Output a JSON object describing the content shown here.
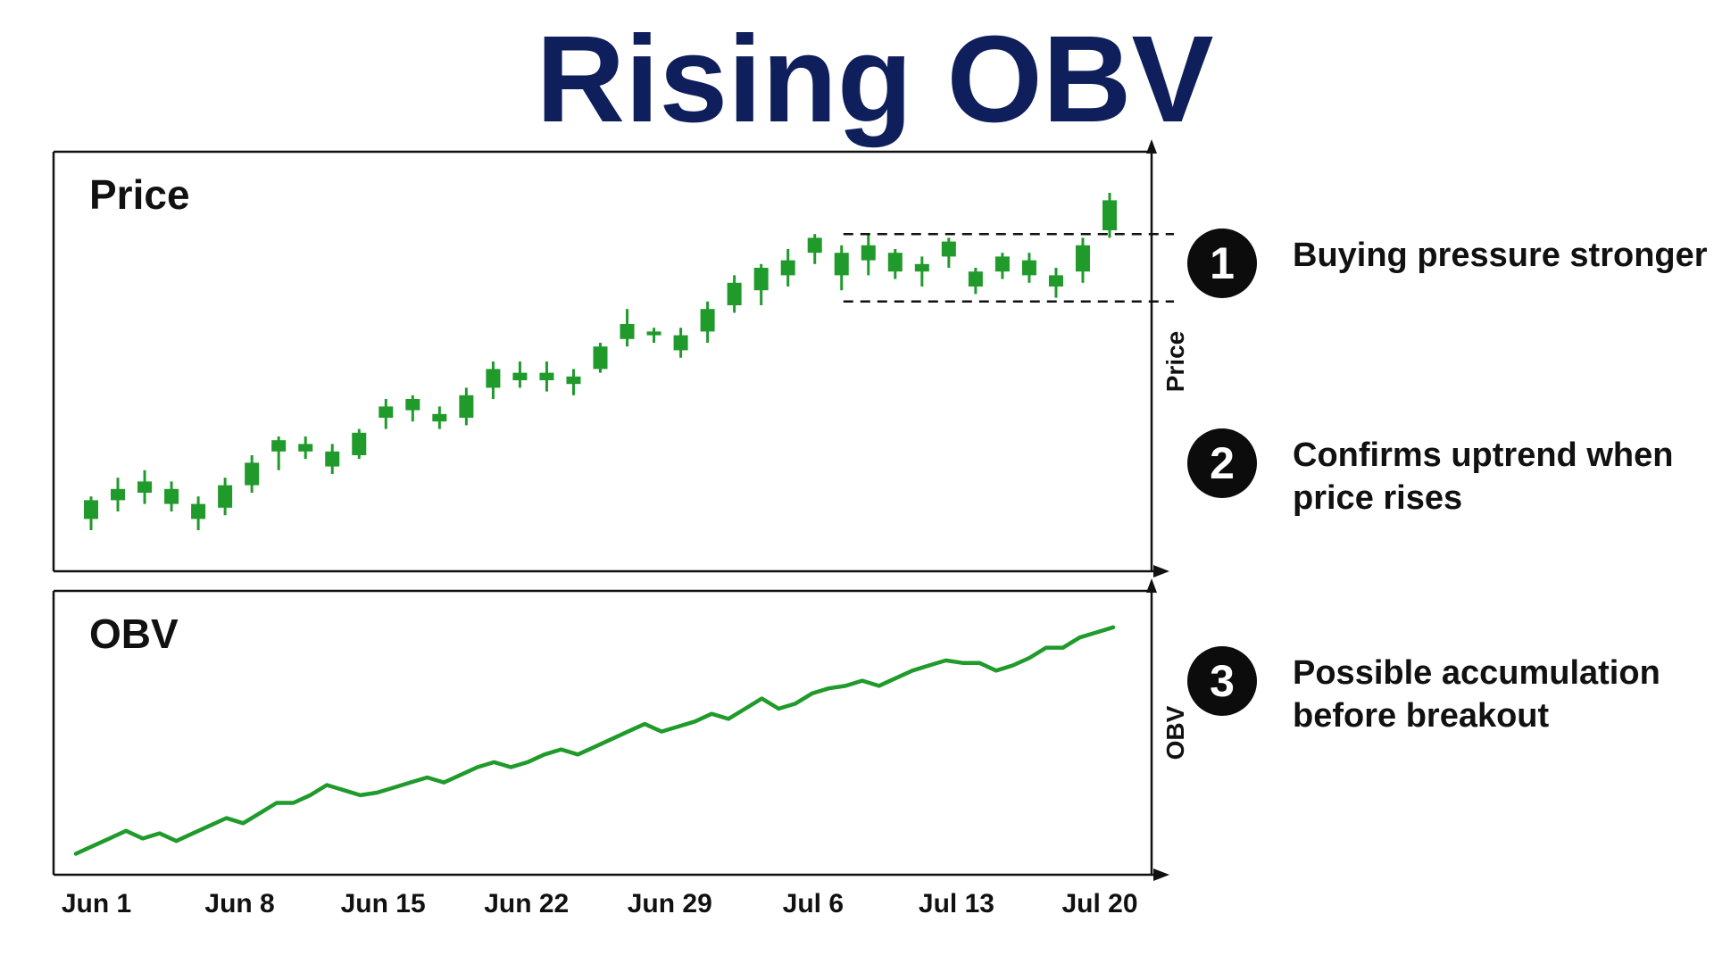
{
  "title": "Rising OBV",
  "annotations": [
    {
      "number": "1",
      "text": "Buying pressure stronger"
    },
    {
      "number": "2",
      "text": "Confirms uptrend when price rises"
    },
    {
      "number": "3",
      "text": "Possible accumulation before breakout"
    }
  ],
  "chart_data": [
    {
      "type": "candlestick",
      "panel_label": "Price",
      "ylabel": "Price",
      "grid": false,
      "bullish_color": "#1f9a2b",
      "ylim": [
        0,
        100
      ],
      "consolidation_range": {
        "from_index": 29,
        "to_index": 39,
        "high": 84,
        "low": 66
      },
      "candles": [
        {
          "o": 8,
          "h": 14,
          "l": 5,
          "c": 13
        },
        {
          "o": 13,
          "h": 19,
          "l": 10,
          "c": 16
        },
        {
          "o": 15,
          "h": 21,
          "l": 12,
          "c": 18
        },
        {
          "o": 16,
          "h": 18,
          "l": 10,
          "c": 12
        },
        {
          "o": 8,
          "h": 14,
          "l": 5,
          "c": 12
        },
        {
          "o": 11,
          "h": 19,
          "l": 9,
          "c": 17
        },
        {
          "o": 17,
          "h": 25,
          "l": 15,
          "c": 23
        },
        {
          "o": 26,
          "h": 30,
          "l": 21,
          "c": 29
        },
        {
          "o": 26,
          "h": 30,
          "l": 24,
          "c": 28
        },
        {
          "o": 22,
          "h": 28,
          "l": 20,
          "c": 26
        },
        {
          "o": 25,
          "h": 32,
          "l": 24,
          "c": 31
        },
        {
          "o": 35,
          "h": 40,
          "l": 32,
          "c": 38
        },
        {
          "o": 37,
          "h": 41,
          "l": 34,
          "c": 40
        },
        {
          "o": 34,
          "h": 38,
          "l": 32,
          "c": 36
        },
        {
          "o": 35,
          "h": 43,
          "l": 33,
          "c": 41
        },
        {
          "o": 43,
          "h": 50,
          "l": 40,
          "c": 48
        },
        {
          "o": 45,
          "h": 50,
          "l": 43,
          "c": 47
        },
        {
          "o": 45,
          "h": 50,
          "l": 42,
          "c": 47
        },
        {
          "o": 44,
          "h": 48,
          "l": 41,
          "c": 46
        },
        {
          "o": 48,
          "h": 55,
          "l": 47,
          "c": 54
        },
        {
          "o": 56,
          "h": 64,
          "l": 54,
          "c": 60
        },
        {
          "o": 57,
          "h": 59,
          "l": 55,
          "c": 58
        },
        {
          "o": 53,
          "h": 59,
          "l": 51,
          "c": 57
        },
        {
          "o": 58,
          "h": 66,
          "l": 55,
          "c": 64
        },
        {
          "o": 65,
          "h": 73,
          "l": 63,
          "c": 71
        },
        {
          "o": 69,
          "h": 76,
          "l": 65,
          "c": 75
        },
        {
          "o": 73,
          "h": 80,
          "l": 70,
          "c": 77
        },
        {
          "o": 79,
          "h": 84,
          "l": 76,
          "c": 83
        },
        {
          "o": 73,
          "h": 81,
          "l": 69,
          "c": 79
        },
        {
          "o": 77,
          "h": 84,
          "l": 73,
          "c": 81
        },
        {
          "o": 74,
          "h": 80,
          "l": 72,
          "c": 79
        },
        {
          "o": 74,
          "h": 78,
          "l": 70,
          "c": 76
        },
        {
          "o": 78,
          "h": 83,
          "l": 75,
          "c": 82
        },
        {
          "o": 70,
          "h": 75,
          "l": 68,
          "c": 74
        },
        {
          "o": 74,
          "h": 79,
          "l": 72,
          "c": 78
        },
        {
          "o": 73,
          "h": 79,
          "l": 71,
          "c": 77
        },
        {
          "o": 70,
          "h": 75,
          "l": 67,
          "c": 73
        },
        {
          "o": 74,
          "h": 83,
          "l": 71,
          "c": 81
        },
        {
          "o": 85,
          "h": 95,
          "l": 83,
          "c": 93
        }
      ]
    },
    {
      "type": "line",
      "panel_label": "OBV",
      "ylabel": "OBV",
      "grid": false,
      "line_color": "#1f9a2b",
      "ylim": [
        0,
        100
      ],
      "x_ticks": [
        "Jun 1",
        "Jun 8",
        "Jun 15",
        "Jun 22",
        "Jun 29",
        "Jul 6",
        "Jul 13",
        "Jul 20"
      ],
      "series": [
        {
          "values": [
            3,
            6,
            9,
            12,
            9,
            11,
            8,
            11,
            14,
            17,
            15,
            19,
            23,
            23,
            26,
            30,
            28,
            26,
            27,
            29,
            31,
            33,
            31,
            34,
            37,
            39,
            37,
            39,
            42,
            44,
            42,
            45,
            48,
            51,
            54,
            51,
            53,
            55,
            58,
            56,
            60,
            64,
            60,
            62,
            66,
            68,
            69,
            71,
            69,
            72,
            75,
            77,
            79,
            78,
            78,
            75,
            77,
            80,
            84,
            84,
            88,
            90,
            92
          ]
        }
      ]
    }
  ]
}
